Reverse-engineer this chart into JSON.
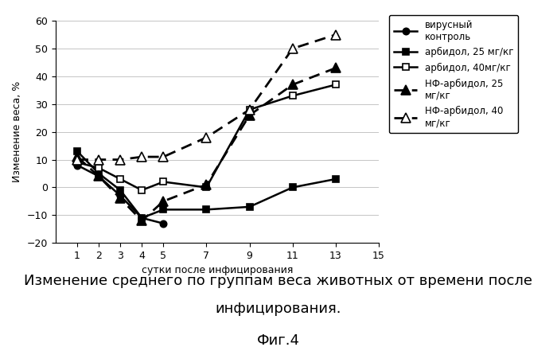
{
  "series": [
    {
      "label": "вирусный\nконтроль",
      "x": [
        1,
        2,
        3,
        4,
        5
      ],
      "y": [
        8,
        4,
        -3,
        -11,
        -13
      ],
      "color": "#000000",
      "linestyle": "-",
      "linewidth": 1.8,
      "marker": "o",
      "markersize": 6,
      "markerfacecolor": "#000000",
      "dashes": null
    },
    {
      "label": "арбидол, 25 мг/кг",
      "x": [
        1,
        2,
        3,
        4,
        5,
        7,
        9,
        11,
        13
      ],
      "y": [
        13,
        5,
        -1,
        -11,
        -8,
        -8,
        -7,
        0,
        3
      ],
      "color": "#000000",
      "linestyle": "-",
      "linewidth": 1.8,
      "marker": "s",
      "markersize": 6,
      "markerfacecolor": "#000000",
      "dashes": null
    },
    {
      "label": "арбидол, 40мг/кг",
      "x": [
        1,
        2,
        3,
        4,
        5,
        7,
        9,
        11,
        13
      ],
      "y": [
        9,
        7,
        3,
        -1,
        2,
        0,
        28,
        33,
        37
      ],
      "color": "#000000",
      "linestyle": "-",
      "linewidth": 1.8,
      "marker": "s",
      "markersize": 6,
      "markerfacecolor": "#ffffff",
      "dashes": null
    },
    {
      "label": "НФ-арбидол, 25\nмг/кг",
      "x": [
        1,
        2,
        3,
        4,
        5,
        7,
        9,
        11,
        13
      ],
      "y": [
        11,
        4,
        -4,
        -12,
        -5,
        1,
        26,
        37,
        43
      ],
      "color": "#000000",
      "linestyle": "--",
      "linewidth": 2.0,
      "marker": "^",
      "markersize": 8,
      "markerfacecolor": "#000000",
      "dashes": [
        5,
        3
      ]
    },
    {
      "label": "НФ-арбидол, 40\nмг/кг",
      "x": [
        1,
        2,
        3,
        4,
        5,
        7,
        9,
        11,
        13
      ],
      "y": [
        10,
        10,
        10,
        11,
        11,
        18,
        28,
        50,
        55
      ],
      "color": "#000000",
      "linestyle": "--",
      "linewidth": 2.0,
      "marker": "^",
      "markersize": 8,
      "markerfacecolor": "#ffffff",
      "dashes": [
        5,
        3
      ]
    }
  ],
  "xlabel": "сутки после инфицирования",
  "ylabel": "Изменение веса, %",
  "xlim": [
    0,
    15
  ],
  "ylim": [
    -20,
    60
  ],
  "xticks": [
    1,
    2,
    3,
    4,
    5,
    7,
    9,
    11,
    13,
    15
  ],
  "yticks": [
    -20,
    -10,
    0,
    10,
    20,
    30,
    40,
    50,
    60
  ],
  "caption_line1": "Изменение среднего по группам веса животных от времени после",
  "caption_line2": "инфицирования.",
  "caption_line3": "Фиг.4",
  "caption_fontsize": 13,
  "axis_label_fontsize": 9,
  "tick_fontsize": 9,
  "legend_fontsize": 8.5,
  "background_color": "#ffffff"
}
